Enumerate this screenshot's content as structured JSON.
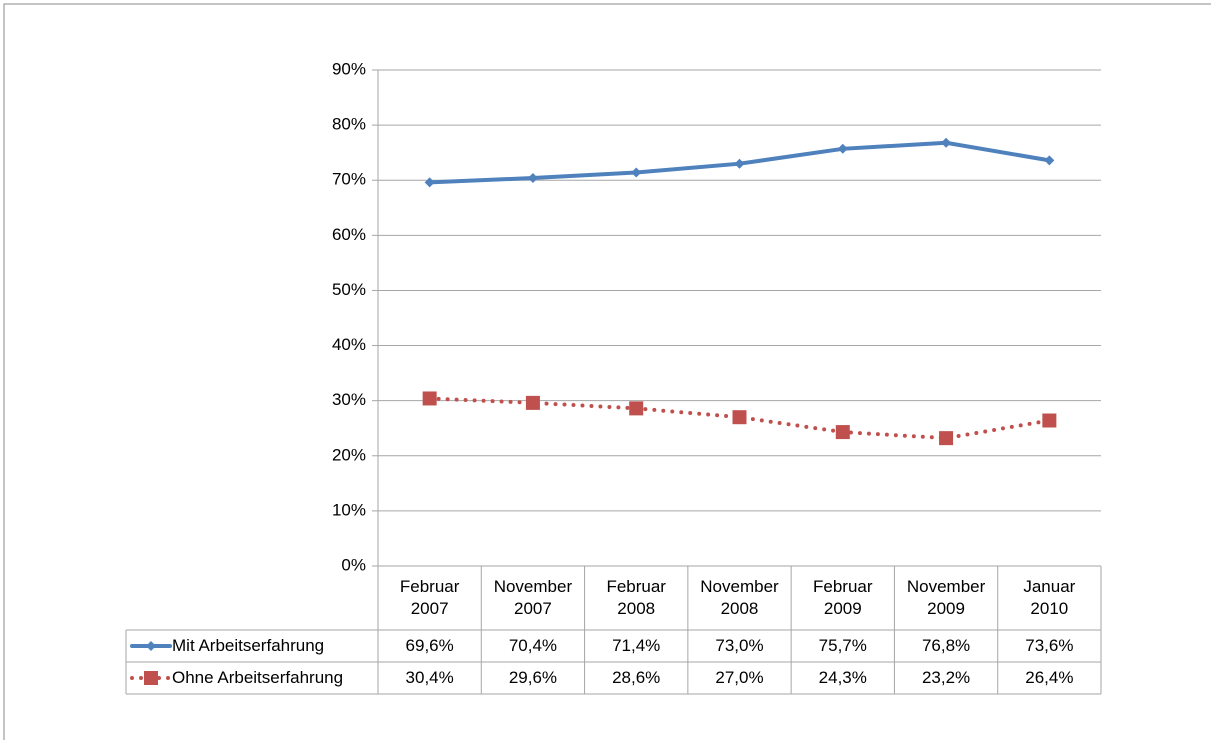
{
  "chart_data": {
    "type": "line",
    "categories": [
      "Februar 2007",
      "November 2007",
      "Februar 2008",
      "November 2008",
      "Februar 2009",
      "November 2009",
      "Januar 2010"
    ],
    "series": [
      {
        "name": "Mit Arbeitserfahrung",
        "color": "#4f81bd",
        "marker": "diamond",
        "dash": "solid",
        "values": [
          69.6,
          70.4,
          71.4,
          73.0,
          75.7,
          76.8,
          73.6
        ],
        "value_labels": [
          "69,6%",
          "70,4%",
          "71,4%",
          "73,0%",
          "75,7%",
          "76,8%",
          "73,6%"
        ]
      },
      {
        "name": "Ohne Arbeitserfahrung",
        "color": "#c0504d",
        "marker": "square",
        "dash": "dotted",
        "values": [
          30.4,
          29.6,
          28.6,
          27.0,
          24.3,
          23.2,
          26.4
        ],
        "value_labels": [
          "30,4%",
          "29,6%",
          "28,6%",
          "27,0%",
          "24,3%",
          "23,2%",
          "26,4%"
        ]
      }
    ],
    "ylim": [
      0,
      90
    ],
    "yticks": [
      {
        "value": 0,
        "label": "0%"
      },
      {
        "value": 10,
        "label": "10%"
      },
      {
        "value": 20,
        "label": "20%"
      },
      {
        "value": 30,
        "label": "30%"
      },
      {
        "value": 40,
        "label": "40%"
      },
      {
        "value": 50,
        "label": "50%"
      },
      {
        "value": 60,
        "label": "60%"
      },
      {
        "value": 70,
        "label": "70%"
      },
      {
        "value": 80,
        "label": "80%"
      },
      {
        "value": 90,
        "label": "90%"
      }
    ],
    "grid": true
  }
}
